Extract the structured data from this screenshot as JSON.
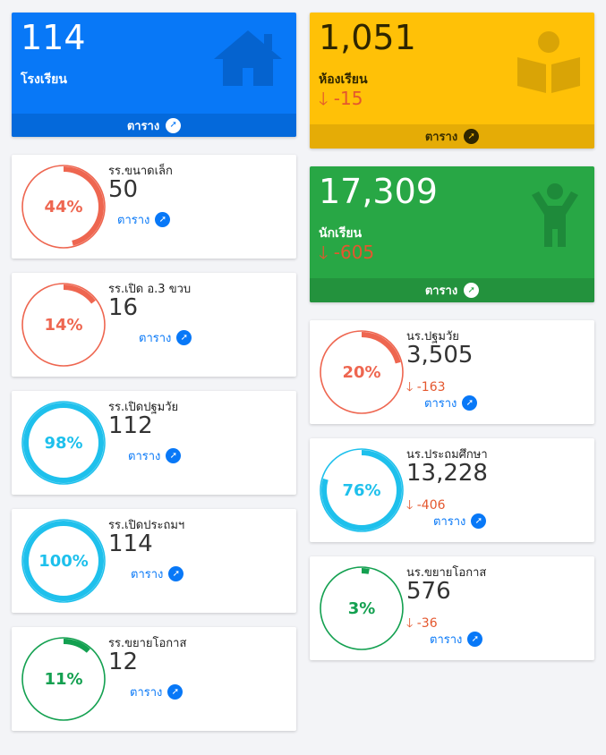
{
  "colors": {
    "blue": "#0878f7",
    "yellow": "#ffc107",
    "green": "#28a745",
    "red": "#ee6650",
    "cyan": "#1ec0ec",
    "deep_green": "#13a050"
  },
  "schools_tile": {
    "value": "114",
    "label": "โรงเรียน",
    "link": "ตาราง",
    "icon": "house-icon"
  },
  "classrooms_tile": {
    "value": "1,051",
    "label": "ห้องเรียน",
    "delta": "-15",
    "link": "ตาราง",
    "icon": "book-reader-icon"
  },
  "students_tile": {
    "value": "17,309",
    "label": "นักเรียน",
    "delta": "-605",
    "link": "ตาราง",
    "icon": "child-icon"
  },
  "school_cards": [
    {
      "title": "รร.ขนาดเล็ก",
      "value": "50",
      "percent": 44,
      "percent_label": "44%",
      "link": "ตาราง",
      "color": "#ee6650"
    },
    {
      "title": "รร.เปิด อ.3 ขวบ",
      "value": "16",
      "percent": 14,
      "percent_label": "14%",
      "link": "ตาราง",
      "color": "#ee6650"
    },
    {
      "title": "รร.เปิดปฐมวัย",
      "value": "112",
      "percent": 98,
      "percent_label": "98%",
      "link": "ตาราง",
      "color": "#1ec0ec"
    },
    {
      "title": "รร.เปิดประถมฯ",
      "value": "114",
      "percent": 100,
      "percent_label": "100%",
      "link": "ตาราง",
      "color": "#1ec0ec"
    },
    {
      "title": "รร.ขยายโอกาส",
      "value": "12",
      "percent": 11,
      "percent_label": "11%",
      "link": "ตาราง",
      "color": "#13a050"
    }
  ],
  "student_cards": [
    {
      "title": "นร.ปฐมวัย",
      "value": "3,505",
      "change": "-163",
      "percent": 20,
      "percent_label": "20%",
      "link": "ตาราง",
      "color": "#ee6650"
    },
    {
      "title": "นร.ประถมศึกษา",
      "value": "13,228",
      "change": "-406",
      "percent": 76,
      "percent_label": "76%",
      "link": "ตาราง",
      "color": "#1ec0ec"
    },
    {
      "title": "นร.ขยายโอกาส",
      "value": "576",
      "change": "-36",
      "percent": 3,
      "percent_label": "3%",
      "link": "ตาราง",
      "color": "#13a050"
    }
  ]
}
